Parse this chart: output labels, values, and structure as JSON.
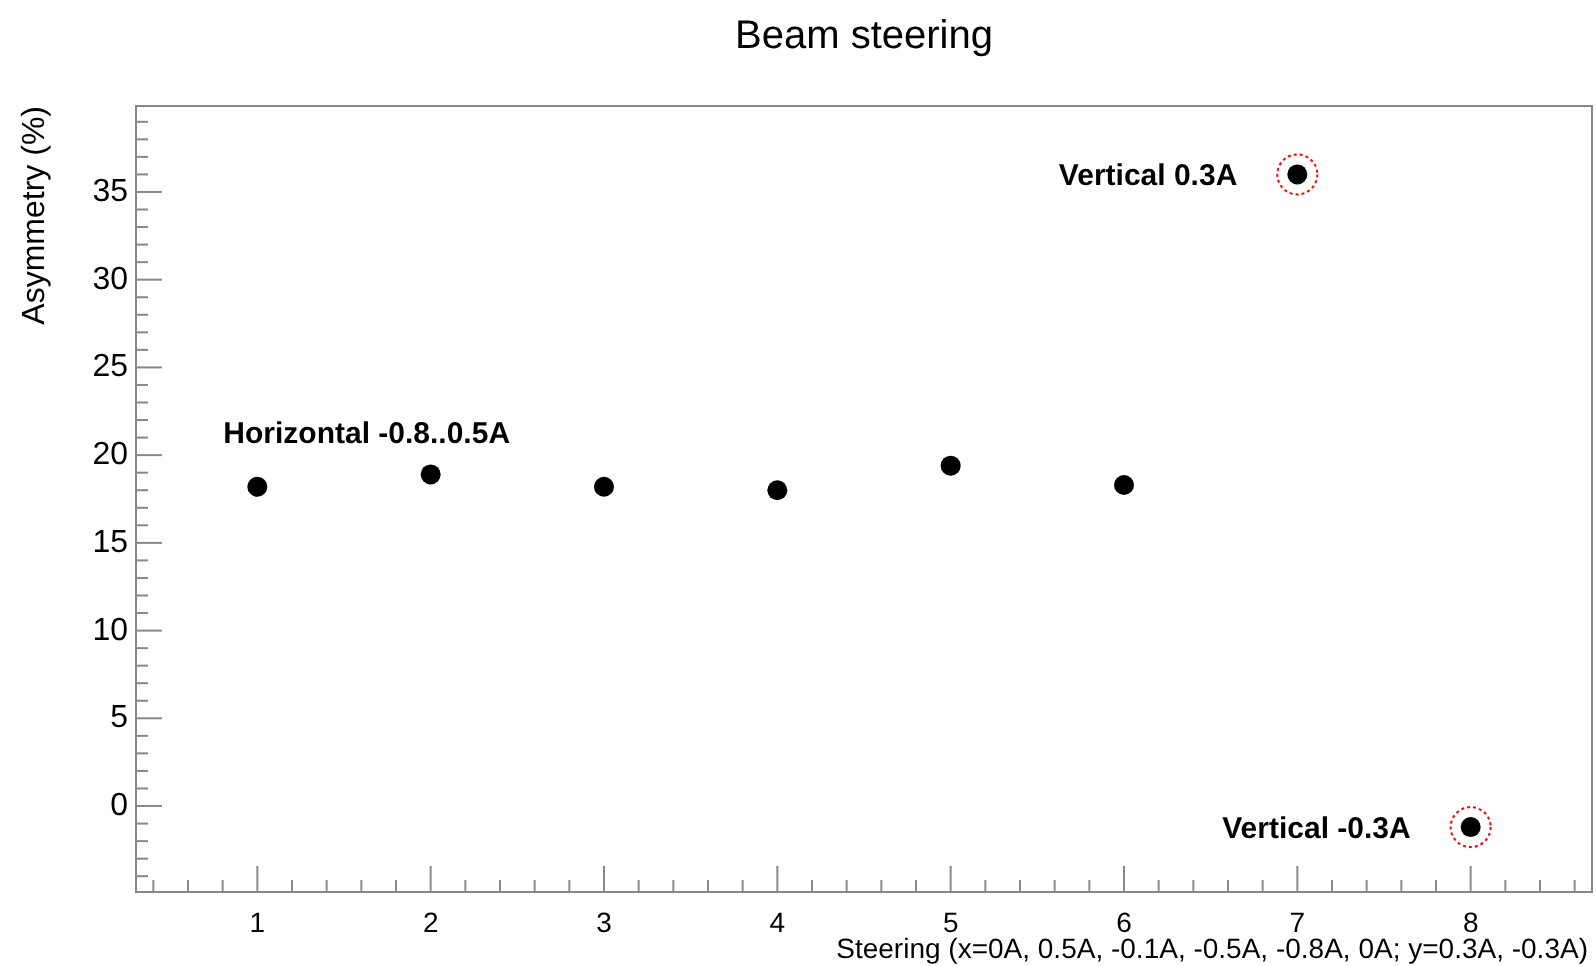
{
  "chart_data": {
    "type": "scatter",
    "title": "Beam steering",
    "xlabel": "Steering (x=0A, 0.5A, -0.1A, -0.5A, -0.8A, 0A; y=0.3A, -0.3A)",
    "ylabel": "Asymmetry (%)",
    "x": [
      1,
      2,
      3,
      4,
      5,
      6,
      7,
      8
    ],
    "series": [
      {
        "color": "#000000",
        "marker": "circle",
        "values": [
          18.2,
          18.9,
          18.2,
          18.0,
          19.4,
          18.3,
          36.0,
          -1.2
        ]
      },
      {
        "color": "#ff0000",
        "marker": "circle",
        "line_style": "dotted",
        "values": [
          null,
          null,
          null,
          null,
          null,
          null,
          36.0,
          -1.2
        ]
      }
    ],
    "xlim": [
      0.3,
      8.7
    ],
    "ylim": [
      -4.9,
      39.9
    ],
    "xticks": [
      {
        "value": 0.4,
        "label": null
      },
      {
        "value": 0.6,
        "label": null
      },
      {
        "value": 0.8,
        "label": null
      },
      1,
      {
        "value": 1.2,
        "label": null
      },
      {
        "value": 1.4,
        "label": null
      },
      {
        "value": 1.6,
        "label": null
      },
      {
        "value": 1.8,
        "label": null
      },
      2,
      {
        "value": 2.2,
        "label": null
      },
      {
        "value": 2.4,
        "label": null
      },
      {
        "value": 2.6,
        "label": null
      },
      {
        "value": 2.8,
        "label": null
      },
      3,
      {
        "value": 3.2,
        "label": null
      },
      {
        "value": 3.4,
        "label": null
      },
      {
        "value": 3.6,
        "label": null
      },
      {
        "value": 3.8,
        "label": null
      },
      4,
      {
        "value": 4.2,
        "label": null
      },
      {
        "value": 4.4,
        "label": null
      },
      {
        "value": 4.6,
        "label": null
      },
      {
        "value": 4.8,
        "label": null
      },
      5,
      {
        "value": 5.2,
        "label": null
      },
      {
        "value": 5.4,
        "label": null
      },
      {
        "value": 5.6,
        "label": null
      },
      {
        "value": 5.8,
        "label": null
      },
      6,
      {
        "value": 6.2,
        "label": null
      },
      {
        "value": 6.4,
        "label": null
      },
      {
        "value": 6.6,
        "label": null
      },
      {
        "value": 6.8,
        "label": null
      },
      7,
      {
        "value": 7.2,
        "label": null
      },
      {
        "value": 7.4,
        "label": null
      },
      {
        "value": 7.6,
        "label": null
      },
      {
        "value": 7.8,
        "label": null
      },
      8,
      {
        "value": 8.2,
        "label": null
      },
      {
        "value": 8.4,
        "label": null
      },
      {
        "value": 8.6,
        "label": null
      }
    ],
    "yticks": [
      {
        "value": -4,
        "label": null
      },
      {
        "value": -3,
        "label": null
      },
      {
        "value": -2,
        "label": null
      },
      {
        "value": -1,
        "label": null
      },
      0,
      {
        "value": 1,
        "label": null
      },
      {
        "value": 2,
        "label": null
      },
      {
        "value": 3,
        "label": null
      },
      {
        "value": 4,
        "label": null
      },
      5,
      {
        "value": 6,
        "label": null
      },
      {
        "value": 7,
        "label": null
      },
      {
        "value": 8,
        "label": null
      },
      {
        "value": 9,
        "label": null
      },
      10,
      {
        "value": 11,
        "label": null
      },
      {
        "value": 12,
        "label": null
      },
      {
        "value": 13,
        "label": null
      },
      {
        "value": 14,
        "label": null
      },
      15,
      {
        "value": 16,
        "label": null
      },
      {
        "value": 17,
        "label": null
      },
      {
        "value": 18,
        "label": null
      },
      {
        "value": 19,
        "label": null
      },
      20,
      {
        "value": 21,
        "label": null
      },
      {
        "value": 22,
        "label": null
      },
      {
        "value": 23,
        "label": null
      },
      {
        "value": 24,
        "label": null
      },
      25,
      {
        "value": 26,
        "label": null
      },
      {
        "value": 27,
        "label": null
      },
      {
        "value": 28,
        "label": null
      },
      {
        "value": 29,
        "label": null
      },
      30,
      {
        "value": 31,
        "label": null
      },
      {
        "value": 32,
        "label": null
      },
      {
        "value": 33,
        "label": null
      },
      {
        "value": 34,
        "label": null
      },
      35,
      {
        "value": 36,
        "label": null
      },
      {
        "value": 37,
        "label": null
      },
      {
        "value": 38,
        "label": null
      },
      {
        "value": 39,
        "label": null
      }
    ],
    "annotations": [
      {
        "text": "Horizontal -0.8..0.5A",
        "x": 1,
        "y": 18.2
      },
      {
        "text": "Vertical 0.3A",
        "x": 7,
        "y": 36.0
      },
      {
        "text": "Vertical -0.3A",
        "x": 8,
        "y": -1.2
      }
    ],
    "grid": false
  }
}
